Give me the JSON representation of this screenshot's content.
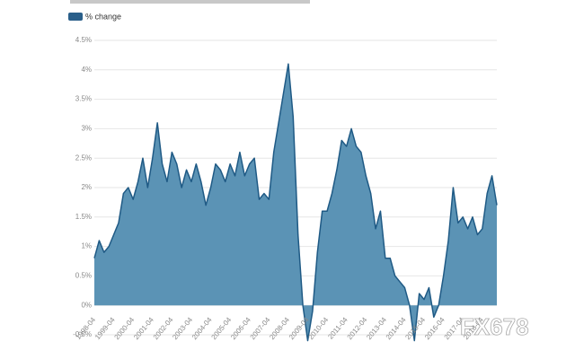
{
  "chart_data": {
    "type": "area",
    "legend_label": "% change",
    "legend_color": "#2a5f8a",
    "color": "#5b93b5",
    "line_color": "#1f5a85",
    "watermark": "FX678",
    "categories": [
      "1998-04",
      null,
      null,
      null,
      "1999-04",
      null,
      null,
      null,
      "2000-04",
      null,
      null,
      null,
      "2001-04",
      null,
      null,
      null,
      "2002-04",
      null,
      null,
      null,
      "2003-04",
      null,
      null,
      null,
      "2004-04",
      null,
      null,
      null,
      "2005-04",
      null,
      null,
      null,
      "2006-04",
      null,
      null,
      null,
      "2007-04",
      null,
      null,
      null,
      "2008-04",
      null,
      null,
      null,
      "2009-04",
      null,
      null,
      null,
      "2010-04",
      null,
      null,
      null,
      "2011-04",
      null,
      null,
      null,
      "2012-04",
      null,
      null,
      null,
      "2013-04",
      null,
      null,
      null,
      "2014-04",
      null,
      null,
      null,
      "2015-04",
      null,
      null,
      null,
      "2016-04",
      null,
      null,
      null,
      "2017-04",
      null,
      null,
      null,
      "2018-04",
      null,
      null,
      null
    ],
    "values": [
      0.8,
      1.1,
      0.9,
      1.0,
      1.2,
      1.4,
      1.9,
      2.0,
      1.8,
      2.1,
      2.5,
      2.0,
      2.5,
      3.1,
      2.4,
      2.1,
      2.6,
      2.4,
      2.0,
      2.3,
      2.1,
      2.4,
      2.1,
      1.7,
      2.0,
      2.4,
      2.3,
      2.1,
      2.4,
      2.2,
      2.6,
      2.2,
      2.4,
      2.5,
      1.8,
      1.9,
      1.8,
      2.6,
      3.1,
      3.6,
      4.1,
      3.2,
      1.2,
      0.0,
      -0.6,
      -0.1,
      0.9,
      1.6,
      1.6,
      1.9,
      2.3,
      2.8,
      2.7,
      3.0,
      2.7,
      2.6,
      2.2,
      1.9,
      1.3,
      1.6,
      0.8,
      0.8,
      0.5,
      0.4,
      0.3,
      0.0,
      -0.6,
      0.2,
      0.1,
      0.3,
      -0.2,
      0.0,
      0.5,
      1.1,
      2.0,
      1.4,
      1.5,
      1.3,
      1.5,
      1.2,
      1.3,
      1.9,
      2.2,
      1.7
    ],
    "ylim": [
      -0.5,
      4.5
    ],
    "yticks": [
      {
        "value": -0.5,
        "label": "-0.5%"
      },
      {
        "value": 0,
        "label": "0%"
      },
      {
        "value": 0.5,
        "label": "0.5%"
      },
      {
        "value": 1,
        "label": "1%"
      },
      {
        "value": 1.5,
        "label": "1.5%"
      },
      {
        "value": 2,
        "label": "2%"
      },
      {
        "value": 2.5,
        "label": "2.5%"
      },
      {
        "value": 3,
        "label": "3%"
      },
      {
        "value": 3.5,
        "label": "3.5%"
      },
      {
        "value": 4,
        "label": "4%"
      },
      {
        "value": 4.5,
        "label": "4.5%"
      }
    ],
    "grid": true
  }
}
